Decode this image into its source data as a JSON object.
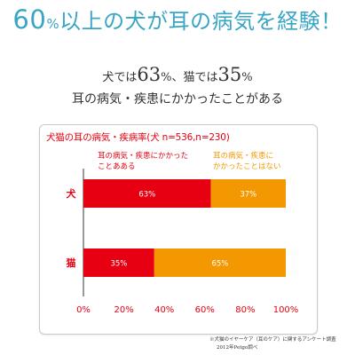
{
  "headline": {
    "percent": "60",
    "percent_sign": "%",
    "rest": "以上の犬が耳の病気を経験！"
  },
  "subhead": {
    "line1_a": "犬では",
    "line1_dog_value": "63",
    "line1_pct1": "%、猫では",
    "line1_cat_value": "35",
    "line1_pct2": "%",
    "line2": "耳の病気・疾患にかかったことがある"
  },
  "chart_data": {
    "type": "bar",
    "orientation": "horizontal",
    "stacked": true,
    "title": "犬猫の耳の病気・疾病率(犬 n=536,n=230)",
    "categories": [
      "犬",
      "猫"
    ],
    "series": [
      {
        "name": "耳の病気・疾患にかかったことあある",
        "label_lines": [
          "耳の病気・疾患にかかった",
          "ことあある"
        ],
        "color": "#e60012",
        "label_color": "#e60012",
        "values": [
          63,
          35
        ]
      },
      {
        "name": "耳の病気・疾患にかかったことはない",
        "label_lines": [
          "耳の病気・疾患に",
          "かかったことはない"
        ],
        "color": "#f39800",
        "label_color": "#f39800",
        "values": [
          37,
          65
        ]
      }
    ],
    "data_labels": [
      [
        "63%",
        "35%"
      ],
      [
        "37%",
        "65%"
      ]
    ],
    "xlim": [
      0,
      100
    ],
    "ticks": [
      "0%",
      "20%",
      "40%",
      "60%",
      "80%",
      "100%"
    ],
    "tick_values": [
      0,
      20,
      40,
      60,
      80,
      100
    ],
    "category_color": "#e60012",
    "tick_color": "#e60012",
    "grid": false
  },
  "footnote": {
    "line1": "※犬猫のイヤーケア（耳のケア）に関するアンケート調査",
    "line2": "2012年Petgo調べ"
  }
}
